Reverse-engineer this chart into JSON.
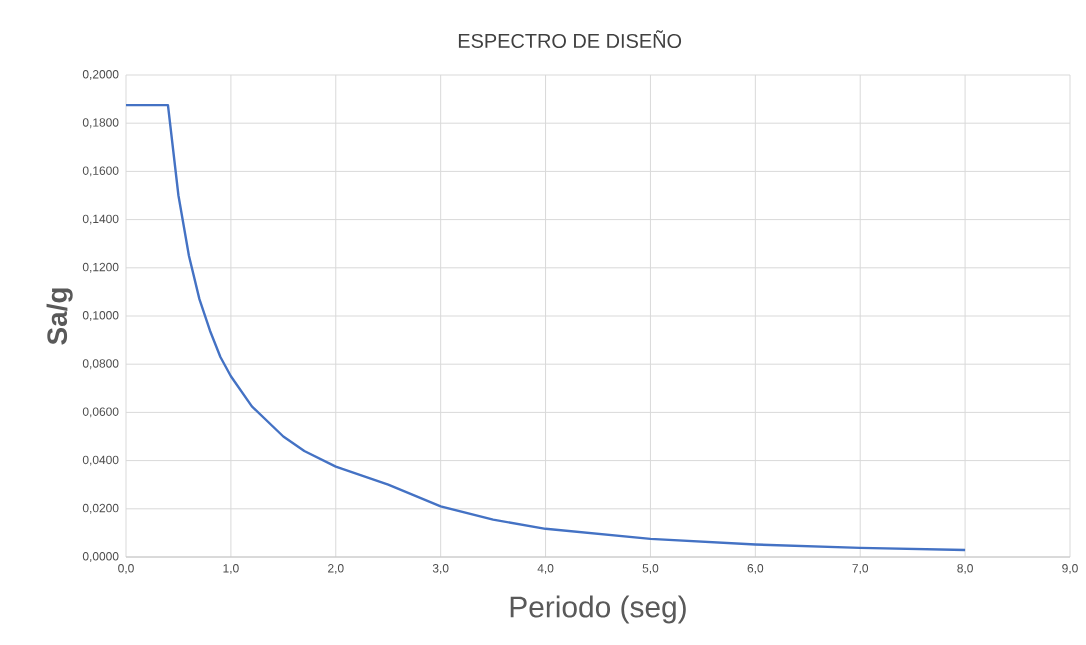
{
  "chart_data": {
    "type": "line",
    "title": "ESPECTRO DE DISEÑO",
    "xlabel": "Periodo (seg)",
    "ylabel": "Sa/g",
    "x": [
      0,
      0.4,
      0.5,
      0.6,
      0.7,
      0.8,
      0.9,
      1.0,
      1.2,
      1.5,
      1.7,
      2.0,
      2.5,
      3.0,
      3.5,
      4.0,
      5.0,
      6.0,
      7.0,
      8.0
    ],
    "series": [
      {
        "color": "#4472c4",
        "values": [
          0.1875,
          0.1875,
          0.15,
          0.125,
          0.107,
          0.094,
          0.083,
          0.075,
          0.0625,
          0.05,
          0.044,
          0.0375,
          0.03,
          0.021,
          0.0155,
          0.0117,
          0.0075,
          0.0052,
          0.0038,
          0.0029
        ]
      }
    ],
    "xlim": [
      0,
      9
    ],
    "xticks": [
      {
        "value": 0,
        "label": "0,0"
      },
      {
        "value": 1,
        "label": "1,0"
      },
      {
        "value": 2,
        "label": "2,0"
      },
      {
        "value": 3,
        "label": "3,0"
      },
      {
        "value": 4,
        "label": "4,0"
      },
      {
        "value": 5,
        "label": "5,0"
      },
      {
        "value": 6,
        "label": "6,0"
      },
      {
        "value": 7,
        "label": "7,0"
      },
      {
        "value": 8,
        "label": "8,0"
      },
      {
        "value": 9,
        "label": "9,0"
      }
    ],
    "ylim": [
      0,
      0.2
    ],
    "yticks": [
      {
        "value": 0,
        "label": "0,0000"
      },
      {
        "value": 0.02,
        "label": "0,0200"
      },
      {
        "value": 0.04,
        "label": "0,0400"
      },
      {
        "value": 0.06,
        "label": "0,0600"
      },
      {
        "value": 0.08,
        "label": "0,0800"
      },
      {
        "value": 0.1,
        "label": "0,1000"
      },
      {
        "value": 0.12,
        "label": "0,1200"
      },
      {
        "value": 0.14,
        "label": "0,1400"
      },
      {
        "value": 0.16,
        "label": "0,1600"
      },
      {
        "value": 0.18,
        "label": "0,1800"
      },
      {
        "value": 0.2,
        "label": "0,2000"
      }
    ],
    "grid": true,
    "marker": "none",
    "line_style": "solid"
  }
}
